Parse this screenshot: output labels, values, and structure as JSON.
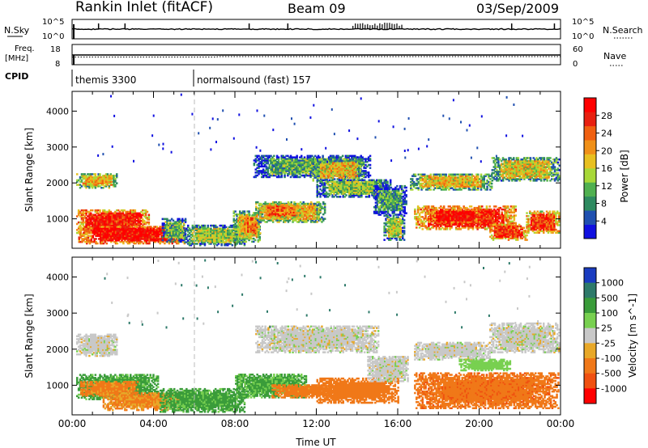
{
  "header": {
    "station": "Rankin Inlet (fitACF)",
    "beam": "Beam 09",
    "date": "03/Sep/2009"
  },
  "panels": {
    "nsky": {
      "label": "N.Sky",
      "tick_top": "10^5",
      "tick_bottom": "10^0"
    },
    "nsearch": {
      "label": "N.Search",
      "tick_top": "10^5",
      "tick_bottom": "10^0"
    },
    "freq": {
      "label_line1": "Freq.",
      "label_line2": "[MHz]",
      "tick_top": "18",
      "tick_bottom": "8"
    },
    "nave": {
      "label": "Nave",
      "tick_top": "60",
      "tick_bottom": "0"
    },
    "cpid": {
      "label": "CPID",
      "segments": [
        {
          "start_hour": 0.0,
          "text": "themis 3300"
        },
        {
          "start_hour": 5.97,
          "text": "normalsound (fast) 157"
        }
      ]
    }
  },
  "colors": {
    "power_scale": [
      "#1010e0",
      "#2050b0",
      "#2e8a60",
      "#50b050",
      "#a8d838",
      "#e8c020",
      "#f09018",
      "#f06010",
      "#e82010",
      "#ff0000"
    ],
    "velocity_scale": [
      "#1a3cc0",
      "#2e7a6a",
      "#3a9c3a",
      "#78d050",
      "#c8c8c8",
      "#e8a828",
      "#f07818",
      "#f05010",
      "#ff0000"
    ]
  },
  "chart_data": [
    {
      "type": "heatmap",
      "title": "Power",
      "xlabel": "Time UT",
      "ylabel": "Slant Range [km]",
      "xlim": [
        0,
        24
      ],
      "ylim": [
        180,
        4550
      ],
      "x_ticks": [
        "00:00",
        "04:00",
        "08:00",
        "12:00",
        "16:00",
        "20:00",
        "00:00"
      ],
      "y_ticks": [
        1000,
        2000,
        3000,
        4000
      ],
      "colorbar": {
        "label": "Power [dB]",
        "ticks": [
          4,
          8,
          12,
          16,
          20,
          24,
          28
        ],
        "range": [
          0,
          32
        ]
      },
      "regions": [
        {
          "t": [
            0.2,
            2.2
          ],
          "r": [
            1850,
            2250
          ],
          "v": 19
        },
        {
          "t": [
            0.2,
            3.8
          ],
          "r": [
            550,
            1250
          ],
          "v": 28
        },
        {
          "t": [
            0.3,
            5.5
          ],
          "r": [
            300,
            800
          ],
          "v": 30
        },
        {
          "t": [
            4.4,
            5.6
          ],
          "r": [
            350,
            1000
          ],
          "v": 11
        },
        {
          "t": [
            5.5,
            8.5
          ],
          "r": [
            250,
            800
          ],
          "v": 14
        },
        {
          "t": [
            7.9,
            9.2
          ],
          "r": [
            350,
            1200
          ],
          "v": 18
        },
        {
          "t": [
            8.3,
            9.2
          ],
          "r": [
            500,
            1100
          ],
          "v": 23
        },
        {
          "t": [
            9.0,
            12.4
          ],
          "r": [
            900,
            1450
          ],
          "v": 19
        },
        {
          "t": [
            9.2,
            11.2
          ],
          "r": [
            1000,
            1400
          ],
          "v": 24
        },
        {
          "t": [
            8.9,
            14.6
          ],
          "r": [
            2150,
            2750
          ],
          "v": 11
        },
        {
          "t": [
            11.8,
            14.3
          ],
          "r": [
            2050,
            2650
          ],
          "v": 18
        },
        {
          "t": [
            12.0,
            15.6
          ],
          "r": [
            1600,
            2100
          ],
          "v": 13
        },
        {
          "t": [
            14.8,
            16.4
          ],
          "r": [
            1100,
            1900
          ],
          "v": 10
        },
        {
          "t": [
            15.3,
            16.3
          ],
          "r": [
            400,
            1100
          ],
          "v": 15
        },
        {
          "t": [
            16.6,
            20.6
          ],
          "r": [
            1800,
            2250
          ],
          "v": 18
        },
        {
          "t": [
            16.8,
            21.8
          ],
          "r": [
            700,
            1350
          ],
          "v": 28
        },
        {
          "t": [
            17.5,
            20.0
          ],
          "r": [
            900,
            1250
          ],
          "v": 30
        },
        {
          "t": [
            20.5,
            22.3
          ],
          "r": [
            400,
            850
          ],
          "v": 27
        },
        {
          "t": [
            20.6,
            23.9
          ],
          "r": [
            2050,
            2700
          ],
          "v": 17
        },
        {
          "t": [
            22.3,
            23.9
          ],
          "r": [
            600,
            1200
          ],
          "v": 26
        }
      ]
    },
    {
      "type": "heatmap",
      "title": "Velocity",
      "xlabel": "Time UT",
      "ylabel": "Slant Range [km]",
      "xlim": [
        0,
        24
      ],
      "ylim": [
        180,
        4550
      ],
      "x_ticks": [
        "00:00",
        "04:00",
        "08:00",
        "12:00",
        "16:00",
        "20:00",
        "00:00"
      ],
      "y_ticks": [
        1000,
        2000,
        3000,
        4000
      ],
      "colorbar": {
        "label": "Velocity [m s^-1]",
        "ticks": [
          1000,
          500,
          100,
          25,
          -25,
          -100,
          -500,
          -1000
        ]
      },
      "regions": [
        {
          "t": [
            0.2,
            2.2
          ],
          "r": [
            1800,
            2400
          ],
          "v": 0
        },
        {
          "t": [
            0.2,
            4.2
          ],
          "r": [
            600,
            1300
          ],
          "v": 150
        },
        {
          "t": [
            0.4,
            3.2
          ],
          "r": [
            700,
            1100
          ],
          "v": -150
        },
        {
          "t": [
            1.5,
            5.3
          ],
          "r": [
            300,
            800
          ],
          "v": -120
        },
        {
          "t": [
            4.3,
            8.5
          ],
          "r": [
            250,
            900
          ],
          "v": 160
        },
        {
          "t": [
            8.0,
            11.5
          ],
          "r": [
            650,
            1300
          ],
          "v": 130
        },
        {
          "t": [
            9.8,
            12.8
          ],
          "r": [
            650,
            1000
          ],
          "v": -200
        },
        {
          "t": [
            9.0,
            15.0
          ],
          "r": [
            1900,
            2650
          ],
          "v": 0
        },
        {
          "t": [
            12.0,
            16.0
          ],
          "r": [
            500,
            1200
          ],
          "v": -300
        },
        {
          "t": [
            14.5,
            16.5
          ],
          "r": [
            1100,
            1800
          ],
          "v": 0
        },
        {
          "t": [
            16.8,
            23.9
          ],
          "r": [
            350,
            1350
          ],
          "v": -350
        },
        {
          "t": [
            16.8,
            20.5
          ],
          "r": [
            1700,
            2200
          ],
          "v": 0
        },
        {
          "t": [
            20.5,
            23.9
          ],
          "r": [
            1900,
            2700
          ],
          "v": 0
        },
        {
          "t": [
            19.0,
            21.5
          ],
          "r": [
            1400,
            1700
          ],
          "v": 60
        }
      ]
    }
  ]
}
